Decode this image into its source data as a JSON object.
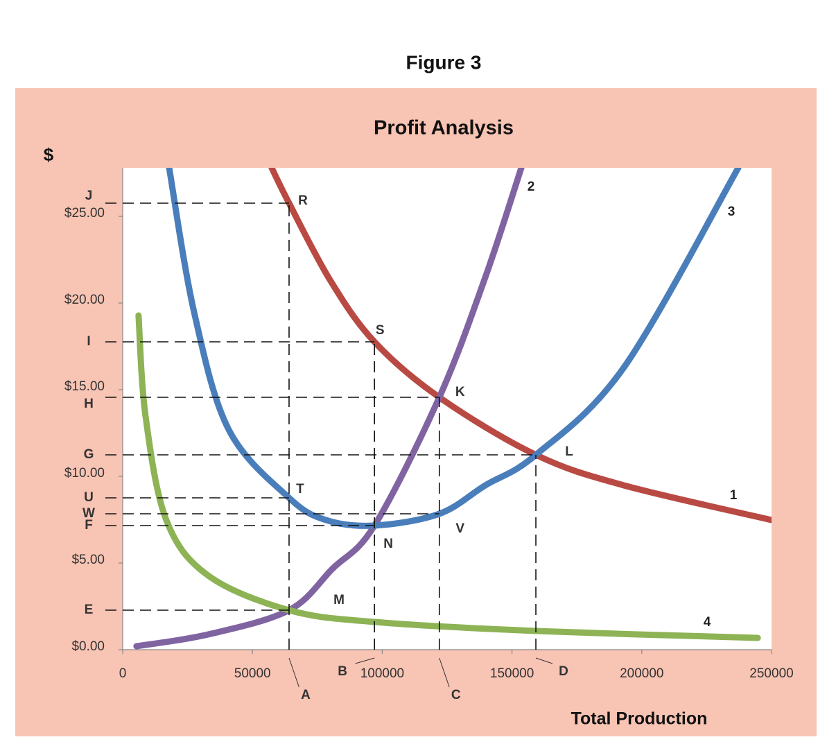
{
  "chart_data": {
    "type": "line",
    "figure_label": "Figure 3",
    "title": "Profit Analysis",
    "y_label": "$",
    "x_label": "Total Production",
    "xlim": [
      0,
      250000
    ],
    "xticks": [
      0,
      50000,
      100000,
      150000,
      200000,
      250000
    ],
    "ylim": [
      0,
      27.8
    ],
    "yticks": [
      {
        "value": 0,
        "label": "$0.00"
      },
      {
        "value": 5,
        "label": "$5.00"
      },
      {
        "value": 10,
        "label": "$10.00"
      },
      {
        "value": 15,
        "label": "$15.00"
      },
      {
        "value": 20,
        "label": "$20.00"
      },
      {
        "value": 25,
        "label": "$25.00"
      }
    ],
    "grid": false,
    "series": [
      {
        "name": "1",
        "color": "#b94a43",
        "x": [
          57400,
          64100,
          80000,
          97000,
          122000,
          159200,
          193100,
          250000
        ],
        "values": [
          27.8,
          25.76,
          21.3,
          17.76,
          14.56,
          11.24,
          9.48,
          7.48
        ]
      },
      {
        "name": "2",
        "color": "#8064a2",
        "x": [
          5300,
          32900,
          64100,
          80900,
          97000,
          122000,
          139700,
          153600
        ],
        "values": [
          0.2,
          0.88,
          2.28,
          4.68,
          7.16,
          14.56,
          21.48,
          27.8
        ]
      },
      {
        "name": "3",
        "color": "#4a7ebb",
        "x": [
          17900,
          27500,
          40900,
          64100,
          78300,
          97000,
          122000,
          139700,
          159200,
          193100,
          237200
        ],
        "values": [
          27.8,
          19.48,
          12.68,
          8.76,
          7.48,
          7.16,
          7.84,
          9.48,
          11.24,
          16.28,
          27.8
        ]
      },
      {
        "name": "4",
        "color": "#8db355",
        "x": [
          6100,
          8800,
          16800,
          32900,
          64100,
          97000,
          159200,
          244700
        ],
        "values": [
          19.28,
          13.48,
          7.48,
          4.28,
          2.28,
          1.6,
          1.08,
          0.68
        ]
      }
    ],
    "points": [
      {
        "label": "R",
        "x": 64100,
        "y": 25.76
      },
      {
        "label": "S",
        "x": 97000,
        "y": 17.76
      },
      {
        "label": "K",
        "x": 122000,
        "y": 14.56
      },
      {
        "label": "L",
        "x": 159200,
        "y": 11.24
      },
      {
        "label": "T",
        "x": 64100,
        "y": 8.76
      },
      {
        "label": "V",
        "x": 122000,
        "y": 7.84
      },
      {
        "label": "N",
        "x": 97000,
        "y": 7.16
      },
      {
        "label": "M",
        "x": 64100,
        "y": 2.28
      }
    ],
    "x_markers": [
      {
        "label": "A",
        "value": 64100
      },
      {
        "label": "B",
        "value": 97000
      },
      {
        "label": "C",
        "value": 122000
      },
      {
        "label": "D",
        "value": 159200
      }
    ],
    "y_markers": [
      {
        "label": "J",
        "value": 25.76
      },
      {
        "label": "I",
        "value": 17.76
      },
      {
        "label": "H",
        "value": 14.56
      },
      {
        "label": "G",
        "value": 11.24
      },
      {
        "label": "U",
        "value": 8.76
      },
      {
        "label": "W",
        "value": 7.84
      },
      {
        "label": "F",
        "value": 7.16
      },
      {
        "label": "E",
        "value": 2.28
      }
    ]
  }
}
